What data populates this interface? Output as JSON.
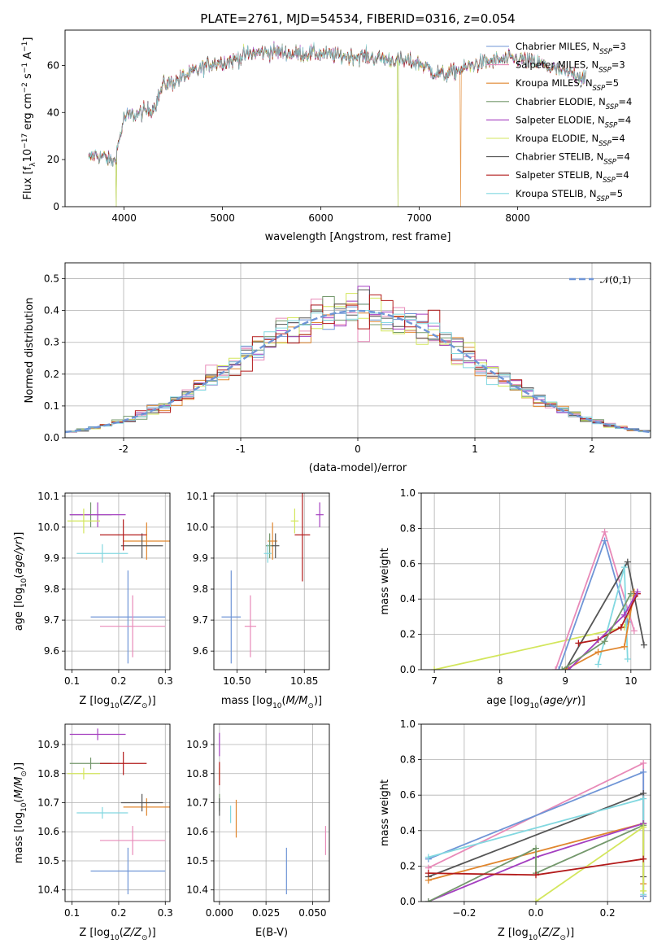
{
  "colors": {
    "chabrier_miles": "#6f95d6",
    "salpeter_miles": "#e88ab8",
    "kroupa_miles": "#e0862e",
    "chabrier_elodie": "#74986c",
    "salpeter_elodie": "#a43fc0",
    "kroupa_elodie": "#d3e65c",
    "chabrier_stelib": "#555555",
    "salpeter_stelib": "#b31b1b",
    "kroupa_stelib": "#82d8e0"
  },
  "chart_data": [
    {
      "id": "spectrum",
      "type": "line",
      "title": "PLATE=2761, MJD=54534, FIBERID=0316, z=0.054",
      "xlabel": "wavelength [Angstrom, rest frame]",
      "ylabel": "Flux [f_λ10^-17 erg cm^-2 s^-1 A^-1]",
      "xlim": [
        3400,
        9350
      ],
      "ylim": [
        0,
        75
      ],
      "xticks": [
        4000,
        5000,
        6000,
        7000,
        8000
      ],
      "yticks": [
        0,
        20,
        40,
        60
      ],
      "grid": false,
      "legend_position": "top-right",
      "continuum": {
        "x": [
          3640,
          3700,
          3800,
          3900,
          3960,
          4000,
          4100,
          4200,
          4300,
          4400,
          4500,
          4700,
          4900,
          5100,
          5200,
          5300,
          5500,
          5700,
          5850,
          6000,
          6200,
          6400,
          6600,
          6800,
          7000,
          7150,
          7250,
          7400,
          7600,
          7800,
          8000,
          8200,
          8400,
          8600,
          8700
        ],
        "y": [
          20,
          22,
          21,
          19,
          30,
          38,
          39,
          40,
          42,
          52,
          53,
          57,
          61,
          62,
          64,
          65,
          66,
          65,
          65,
          65,
          64,
          64,
          63,
          62,
          61,
          57,
          56,
          58,
          61,
          62,
          63,
          61,
          58,
          56,
          55
        ]
      },
      "series": [
        {
          "name": "Chabrier MILES, N_SSP=3",
          "color": "#6f95d6",
          "dropouts": []
        },
        {
          "name": "Salpeter MILES, N_SSP=3",
          "color": "#e88ab8",
          "dropouts": []
        },
        {
          "name": "Kroupa MILES, N_SSP=5",
          "color": "#e0862e",
          "dropouts": [
            7420
          ]
        },
        {
          "name": "Chabrier ELODIE, N_SSP=4",
          "color": "#74986c",
          "dropouts": [
            3920,
            6780
          ]
        },
        {
          "name": "Salpeter ELODIE, N_SSP=4",
          "color": "#a43fc0",
          "dropouts": []
        },
        {
          "name": "Kroupa ELODIE, N_SSP=4",
          "color": "#d3e65c",
          "dropouts": [
            3920,
            6780
          ]
        },
        {
          "name": "Chabrier STELIB, N_SSP=4",
          "color": "#555555",
          "dropouts": []
        },
        {
          "name": "Salpeter STELIB, N_SSP=4",
          "color": "#b31b1b",
          "dropouts": []
        },
        {
          "name": "Kroupa STELIB, N_SSP=5",
          "color": "#82d8e0",
          "dropouts": []
        }
      ]
    },
    {
      "id": "residuals",
      "type": "bar",
      "xlabel": "(data-model)/error",
      "ylabel": "Normed distribution",
      "xlim": [
        -2.5,
        2.5
      ],
      "ylim": [
        0,
        0.55
      ],
      "xticks": [
        -2,
        -1,
        0,
        1,
        2
      ],
      "yticks": [
        0.0,
        0.1,
        0.2,
        0.3,
        0.4,
        0.5
      ],
      "grid": true,
      "legend_position": "top-right",
      "bin_width": 0.1,
      "bins_start": -2.5,
      "reference": {
        "name": "𝒩(0,1)",
        "color": "#6f95d6",
        "mu": 0,
        "sigma": 1
      }
    },
    {
      "id": "age_vs_Z",
      "type": "scatter",
      "xlabel": "Z [log10(Z/Z⊙)]",
      "ylabel": "age [log10(age/yr)]",
      "xlim": [
        0.085,
        0.31
      ],
      "ylim": [
        9.54,
        10.11
      ],
      "xticks": [
        0.1,
        0.2,
        0.3
      ],
      "yticks": [
        9.6,
        9.7,
        9.8,
        9.9,
        10.0,
        10.1
      ],
      "grid": true,
      "points": [
        {
          "color": "#6f95d6",
          "x": 0.22,
          "xerr": 0.08,
          "y": 9.71,
          "yerr": 0.15
        },
        {
          "color": "#e88ab8",
          "x": 0.23,
          "xerr": 0.07,
          "y": 9.68,
          "yerr": 0.1
        },
        {
          "color": "#e0862e",
          "x": 0.26,
          "xerr": 0.05,
          "y": 9.955,
          "yerr": 0.06
        },
        {
          "color": "#74986c",
          "x": 0.14,
          "xerr": 0.045,
          "y": 10.04,
          "yerr": 0.04
        },
        {
          "color": "#a43fc0",
          "x": 0.155,
          "xerr": 0.06,
          "y": 10.04,
          "yerr": 0.04
        },
        {
          "color": "#d3e65c",
          "x": 0.125,
          "xerr": 0.035,
          "y": 10.02,
          "yerr": 0.04
        },
        {
          "color": "#555555",
          "x": 0.25,
          "xerr": 0.045,
          "y": 9.94,
          "yerr": 0.04
        },
        {
          "color": "#b31b1b",
          "x": 0.21,
          "xerr": 0.05,
          "y": 9.975,
          "yerr": 0.05
        },
        {
          "color": "#82d8e0",
          "x": 0.165,
          "xerr": 0.055,
          "y": 9.915,
          "yerr": 0.03
        }
      ]
    },
    {
      "id": "age_vs_mass",
      "type": "scatter",
      "xlabel": "mass [log10(M/M⊙)]",
      "ylabel": "",
      "xlim": [
        10.38,
        10.98
      ],
      "ylim": [
        9.54,
        10.11
      ],
      "xticks": [
        10.5,
        10.65,
        10.85
      ],
      "xticklabels": [
        "10.50",
        "",
        "10.85"
      ],
      "yticks": [
        9.6,
        9.7,
        9.8,
        9.9,
        10.0,
        10.1
      ],
      "grid": true,
      "points": [
        {
          "color": "#6f95d6",
          "x": 10.47,
          "xerr": 0.05,
          "y": 9.71,
          "yerr": 0.15
        },
        {
          "color": "#e88ab8",
          "x": 10.57,
          "xerr": 0.03,
          "y": 9.68,
          "yerr": 0.1
        },
        {
          "color": "#e0862e",
          "x": 10.685,
          "xerr": 0.025,
          "y": 9.955,
          "yerr": 0.06
        },
        {
          "color": "#74986c",
          "x": 10.67,
          "xerr": 0.02,
          "y": 9.94,
          "yerr": 0.04
        },
        {
          "color": "#a43fc0",
          "x": 10.93,
          "xerr": 0.02,
          "y": 10.04,
          "yerr": 0.04
        },
        {
          "color": "#d3e65c",
          "x": 10.8,
          "xerr": 0.02,
          "y": 10.02,
          "yerr": 0.04
        },
        {
          "color": "#555555",
          "x": 10.7,
          "xerr": 0.02,
          "y": 9.94,
          "yerr": 0.04
        },
        {
          "color": "#b31b1b",
          "x": 10.84,
          "xerr": 0.04,
          "y": 9.975,
          "yerr": 0.15
        },
        {
          "color": "#82d8e0",
          "x": 10.66,
          "xerr": 0.02,
          "y": 9.915,
          "yerr": 0.03
        }
      ]
    },
    {
      "id": "massweight_vs_age",
      "type": "line",
      "xlabel": "age [log10(age/yr)]",
      "ylabel": "mass weight",
      "xlim": [
        6.8,
        10.3
      ],
      "ylim": [
        0.0,
        1.0
      ],
      "xticks": [
        7,
        8,
        9,
        10
      ],
      "yticks": [
        0.0,
        0.2,
        0.4,
        0.6,
        0.8,
        1.0
      ],
      "grid": true,
      "series": [
        {
          "color": "#d3e65c",
          "x": [
            7.0,
            9.9,
            10.05
          ],
          "y": [
            0.0,
            0.24,
            0.42
          ]
        },
        {
          "color": "#e88ab8",
          "x": [
            8.85,
            9.6,
            10.05
          ],
          "y": [
            0.0,
            0.78,
            0.22
          ]
        },
        {
          "color": "#6f95d6",
          "x": [
            8.9,
            9.6,
            9.95
          ],
          "y": [
            0.0,
            0.73,
            0.27
          ]
        },
        {
          "color": "#555555",
          "x": [
            9.0,
            9.95,
            10.2
          ],
          "y": [
            0.0,
            0.61,
            0.14
          ]
        },
        {
          "color": "#82d8e0",
          "x": [
            9.5,
            9.9,
            9.95
          ],
          "y": [
            0.03,
            0.58,
            0.06
          ]
        },
        {
          "color": "#e0862e",
          "x": [
            9.0,
            9.5,
            9.9,
            10.05
          ],
          "y": [
            0.0,
            0.1,
            0.13,
            0.44
          ]
        },
        {
          "color": "#b31b1b",
          "x": [
            9.2,
            9.5,
            9.85,
            10.1
          ],
          "y": [
            0.15,
            0.17,
            0.24,
            0.43
          ]
        },
        {
          "color": "#a43fc0",
          "x": [
            9.05,
            9.9,
            10.1
          ],
          "y": [
            0.0,
            0.31,
            0.44
          ]
        },
        {
          "color": "#74986c",
          "x": [
            8.95,
            9.6,
            10.0
          ],
          "y": [
            0.0,
            0.16,
            0.43
          ]
        }
      ]
    },
    {
      "id": "mass_vs_Z",
      "type": "scatter",
      "xlabel": "Z [log10(Z/Z⊙)]",
      "ylabel": "mass [log10(M/M⊙)]",
      "xlim": [
        0.085,
        0.31
      ],
      "ylim": [
        10.36,
        10.97
      ],
      "xticks": [
        0.1,
        0.2,
        0.3
      ],
      "yticks": [
        10.4,
        10.5,
        10.6,
        10.7,
        10.8,
        10.9
      ],
      "grid": true,
      "points": [
        {
          "color": "#6f95d6",
          "x": 0.22,
          "xerr": 0.08,
          "y": 10.465,
          "yerr": 0.08
        },
        {
          "color": "#e88ab8",
          "x": 0.23,
          "xerr": 0.07,
          "y": 10.57,
          "yerr": 0.05
        },
        {
          "color": "#e0862e",
          "x": 0.26,
          "xerr": 0.05,
          "y": 10.685,
          "yerr": 0.03
        },
        {
          "color": "#74986c",
          "x": 0.14,
          "xerr": 0.045,
          "y": 10.835,
          "yerr": 0.02
        },
        {
          "color": "#a43fc0",
          "x": 0.155,
          "xerr": 0.06,
          "y": 10.935,
          "yerr": 0.02
        },
        {
          "color": "#d3e65c",
          "x": 0.125,
          "xerr": 0.035,
          "y": 10.8,
          "yerr": 0.02
        },
        {
          "color": "#555555",
          "x": 0.25,
          "xerr": 0.045,
          "y": 10.7,
          "yerr": 0.03
        },
        {
          "color": "#b31b1b",
          "x": 0.21,
          "xerr": 0.05,
          "y": 10.835,
          "yerr": 0.04
        },
        {
          "color": "#82d8e0",
          "x": 0.165,
          "xerr": 0.055,
          "y": 10.665,
          "yerr": 0.02
        }
      ]
    },
    {
      "id": "mass_vs_EBV",
      "type": "scatter",
      "xlabel": "E(B-V)",
      "ylabel": "",
      "xlim": [
        -0.003,
        0.059
      ],
      "ylim": [
        10.36,
        10.97
      ],
      "xticks": [
        0.0,
        0.025,
        0.05
      ],
      "xticklabels": [
        "0.000",
        "0.025",
        "0.050"
      ],
      "yticks": [
        10.4,
        10.5,
        10.6,
        10.7,
        10.8,
        10.9
      ],
      "grid": true,
      "points": [
        {
          "color": "#6f95d6",
          "x": 0.036,
          "y": 10.465,
          "yerr": 0.08
        },
        {
          "color": "#e88ab8",
          "x": 0.057,
          "y": 10.57,
          "yerr": 0.05
        },
        {
          "color": "#e0862e",
          "x": 0.009,
          "y": 10.645,
          "yerr": 0.065
        },
        {
          "color": "#74986c",
          "x": 0.0,
          "y": 10.7,
          "yerr": 0.03
        },
        {
          "color": "#a43fc0",
          "x": 0.0,
          "y": 10.9,
          "yerr": 0.04
        },
        {
          "color": "#d3e65c",
          "x": 0.0,
          "y": 10.8,
          "yerr": 0.02
        },
        {
          "color": "#555555",
          "x": 0.0,
          "y": 10.685,
          "yerr": 0.03
        },
        {
          "color": "#b31b1b",
          "x": 0.0,
          "y": 10.8,
          "yerr": 0.04
        },
        {
          "color": "#82d8e0",
          "x": 0.006,
          "y": 10.66,
          "yerr": 0.03
        }
      ]
    },
    {
      "id": "massweight_vs_Z",
      "type": "line",
      "xlabel": "Z [log10(Z/Z⊙)]",
      "ylabel": "mass weight",
      "xlim": [
        -0.32,
        0.32
      ],
      "ylim": [
        0.0,
        1.0
      ],
      "xticks": [
        -0.2,
        0.0,
        0.2
      ],
      "xticklabels": [
        "−0.2",
        "0.0",
        "0.2"
      ],
      "yticks": [
        0.0,
        0.2,
        0.4,
        0.6,
        0.8,
        1.0
      ],
      "grid": true,
      "series": [
        {
          "color": "#e88ab8",
          "x": [
            -0.3,
            0.3,
            0.3
          ],
          "y": [
            0.19,
            0.78,
            0.03
          ]
        },
        {
          "color": "#6f95d6",
          "x": [
            -0.3,
            0.3,
            0.3
          ],
          "y": [
            0.24,
            0.73,
            0.03
          ]
        },
        {
          "color": "#555555",
          "x": [
            -0.3,
            0.3,
            0.3
          ],
          "y": [
            0.14,
            0.61,
            0.14
          ]
        },
        {
          "color": "#82d8e0",
          "x": [
            -0.3,
            0.3,
            0.3
          ],
          "y": [
            0.25,
            0.58,
            0.04
          ]
        },
        {
          "color": "#e0862e",
          "x": [
            -0.3,
            0.3,
            0.3
          ],
          "y": [
            0.12,
            0.44,
            0.1
          ]
        },
        {
          "color": "#a43fc0",
          "x": [
            -0.3,
            0.0,
            0.3
          ],
          "y": [
            0.0,
            0.25,
            0.44
          ]
        },
        {
          "color": "#74986c",
          "x": [
            -0.3,
            0.0,
            0.0,
            0.3
          ],
          "y": [
            0.0,
            0.3,
            0.16,
            0.43
          ]
        },
        {
          "color": "#d3e65c",
          "x": [
            0.0,
            0.3,
            0.3
          ],
          "y": [
            0.0,
            0.42,
            0.06
          ]
        },
        {
          "color": "#b31b1b",
          "x": [
            -0.3,
            0.0,
            0.3
          ],
          "y": [
            0.16,
            0.15,
            0.24
          ]
        }
      ]
    }
  ]
}
